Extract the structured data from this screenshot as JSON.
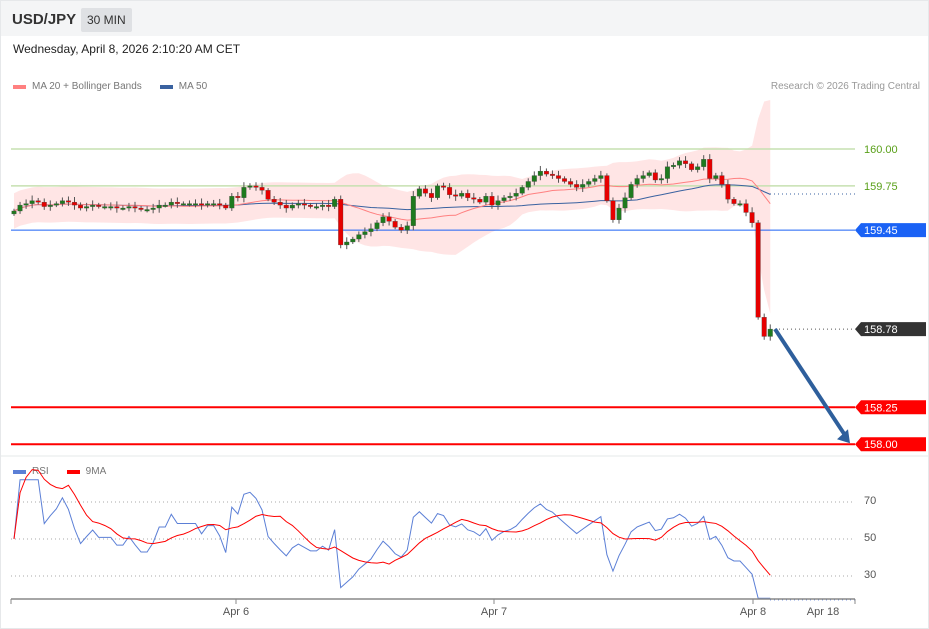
{
  "header": {
    "symbol": "USD/JPY",
    "timeframe": "30 MIN"
  },
  "datetime": "Wednesday, April 8, 2026 2:10:20 AM CET",
  "legend": {
    "ma20": "MA 20 + Bollinger Bands",
    "ma50": "MA 50",
    "ma20_color": "#ff8080",
    "ma50_color": "#3a62a0"
  },
  "credit": "Research © 2026 Trading Central",
  "levels": [
    {
      "value": 160.0,
      "label": "160.00",
      "style": "resistance",
      "color": "#c6e0b0",
      "text_color": "#5aa01a"
    },
    {
      "value": 159.75,
      "label": "159.75",
      "style": "resistance",
      "color": "#c6e0b0",
      "text_color": "#5aa01a"
    },
    {
      "value": 159.45,
      "label": "159.45",
      "style": "pivot",
      "color": "#1a62f5"
    },
    {
      "value": 158.78,
      "label": "158.78",
      "style": "last",
      "color": "#333333"
    },
    {
      "value": 158.25,
      "label": "158.25",
      "style": "target",
      "color": "#ff0000"
    },
    {
      "value": 158.0,
      "label": "158.00",
      "style": "target",
      "color": "#ff0000"
    }
  ],
  "arrow": {
    "from": 158.78,
    "to": 158.0,
    "direction": "down",
    "color": "#2e5f9c"
  },
  "chart_data": {
    "type": "candlestick",
    "price_range": [
      157.97,
      160.33
    ],
    "closes": [
      159.58,
      159.62,
      159.63,
      159.65,
      159.64,
      159.61,
      159.62,
      159.63,
      159.65,
      159.64,
      159.62,
      159.6,
      159.61,
      159.62,
      159.61,
      159.61,
      159.61,
      159.6,
      159.6,
      159.61,
      159.6,
      159.59,
      159.59,
      159.6,
      159.62,
      159.62,
      159.64,
      159.63,
      159.63,
      159.63,
      159.63,
      159.62,
      159.63,
      159.63,
      159.62,
      159.6,
      159.68,
      159.67,
      159.74,
      159.75,
      159.74,
      159.72,
      159.66,
      159.64,
      159.62,
      159.6,
      159.62,
      159.63,
      159.62,
      159.61,
      159.61,
      159.62,
      159.61,
      159.66,
      159.35,
      159.37,
      159.39,
      159.42,
      159.44,
      159.46,
      159.5,
      159.54,
      159.51,
      159.47,
      159.45,
      159.48,
      159.68,
      159.73,
      159.7,
      159.67,
      159.75,
      159.74,
      159.69,
      159.68,
      159.7,
      159.67,
      159.66,
      159.64,
      159.68,
      159.62,
      159.65,
      159.67,
      159.68,
      159.7,
      159.74,
      159.78,
      159.82,
      159.85,
      159.83,
      159.82,
      159.8,
      159.78,
      159.76,
      159.74,
      159.76,
      159.78,
      159.8,
      159.82,
      159.65,
      159.52,
      159.6,
      159.67,
      159.76,
      159.8,
      159.82,
      159.84,
      159.79,
      159.8,
      159.88,
      159.89,
      159.92,
      159.9,
      159.86,
      159.88,
      159.93,
      159.8,
      159.82,
      159.76,
      159.66,
      159.63,
      159.63,
      159.57,
      159.5,
      158.86,
      158.73,
      158.78
    ],
    "x_labels": [
      "Apr 6",
      "Apr 7",
      "Apr 8",
      "Apr 18"
    ],
    "rsi": {
      "legend_rsi": "RSI",
      "legend_ma": "9MA",
      "rsi_color": "#5b7fd6",
      "ma_color": "#ff0000",
      "levels": [
        "70",
        "50",
        "30"
      ],
      "range": [
        15,
        85
      ]
    }
  }
}
